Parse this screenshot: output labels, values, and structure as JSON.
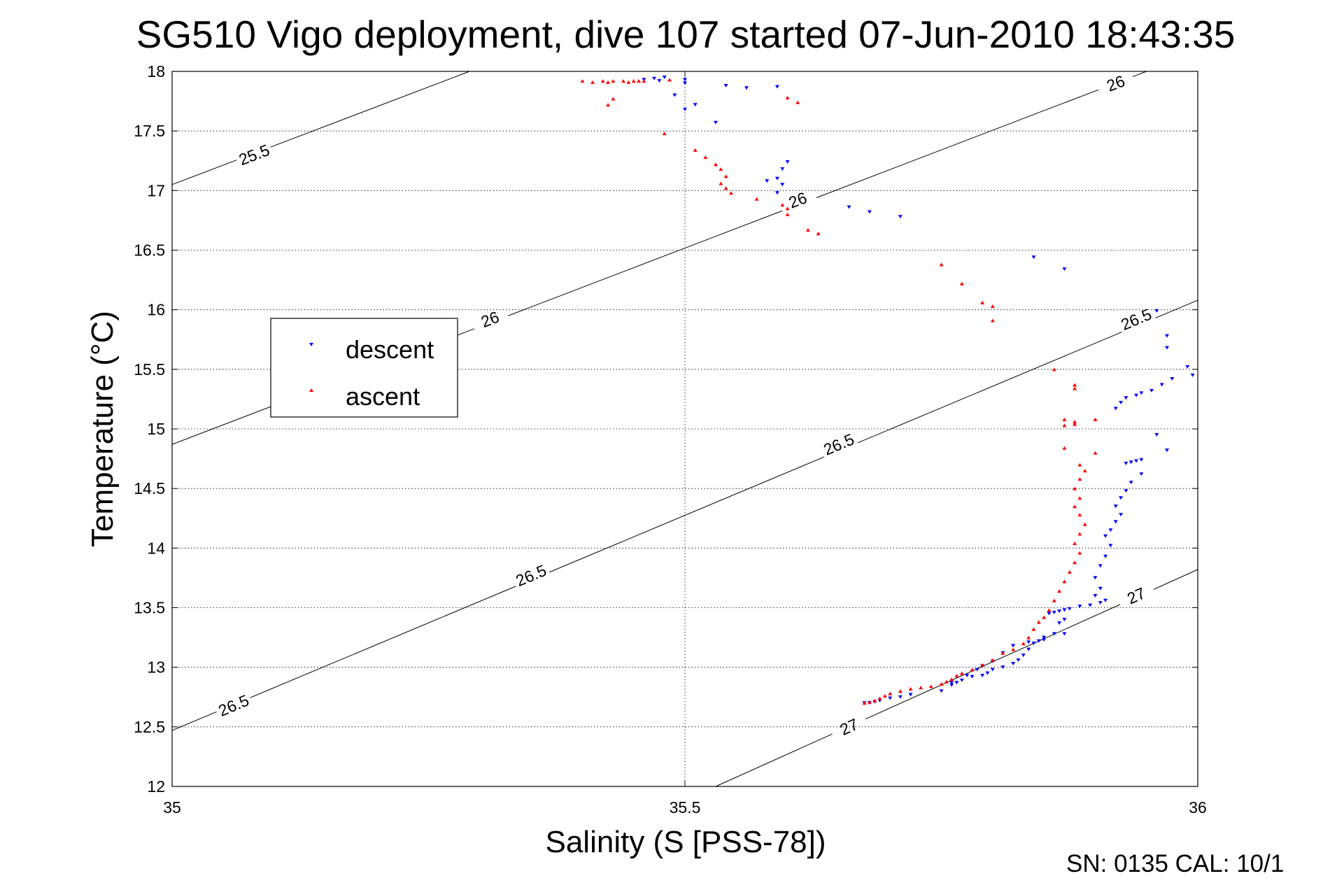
{
  "chart_data": {
    "type": "scatter",
    "title": "SG510 Vigo deployment, dive 107 started 07-Jun-2010 18:43:35",
    "xlabel": "Salinity (S [PSS-78])",
    "ylabel": "Temperature (°C)",
    "xlim": [
      35,
      36
    ],
    "ylim": [
      12,
      18
    ],
    "xticks": [
      "35",
      "35.5",
      "36"
    ],
    "yticks": [
      "12",
      "12.5",
      "13",
      "13.5",
      "14",
      "14.5",
      "15",
      "15.5",
      "16",
      "16.5",
      "17",
      "17.5",
      "18"
    ],
    "grid": true,
    "legend_position": "middle-left",
    "footer": "SN: 0135  CAL: 10/1",
    "density_contours": [
      {
        "label": "25.5",
        "line": [
          [
            35.0,
            17.05
          ],
          [
            35.29,
            18.0
          ]
        ],
        "label_at": [
          [
            35.08,
            17.3
          ]
        ]
      },
      {
        "label": "26",
        "line": [
          [
            35.0,
            14.87
          ],
          [
            35.95,
            18.0
          ]
        ],
        "label_at": [
          [
            35.31,
            15.92
          ],
          [
            35.61,
            16.92
          ],
          [
            35.92,
            17.9
          ]
        ]
      },
      {
        "label": "26.5",
        "line": [
          [
            35.0,
            12.47
          ],
          [
            36.0,
            16.08
          ]
        ],
        "label_at": [
          [
            35.06,
            12.68
          ],
          [
            35.35,
            13.77
          ],
          [
            35.65,
            14.87
          ],
          [
            35.94,
            15.92
          ]
        ]
      },
      {
        "label": "27",
        "line": [
          [
            35.53,
            12.0
          ],
          [
            36.0,
            13.82
          ]
        ],
        "label_at": [
          [
            35.66,
            12.5
          ],
          [
            35.94,
            13.6
          ]
        ]
      }
    ],
    "series": [
      {
        "name": "descent",
        "color": "#0000ff",
        "marker": "triangle-down",
        "points": [
          [
            35.46,
            17.93
          ],
          [
            35.47,
            17.94
          ],
          [
            35.475,
            17.92
          ],
          [
            35.48,
            17.95
          ],
          [
            35.5,
            17.93
          ],
          [
            35.5,
            17.9
          ],
          [
            35.54,
            17.88
          ],
          [
            35.56,
            17.86
          ],
          [
            35.59,
            17.87
          ],
          [
            35.49,
            17.8
          ],
          [
            35.51,
            17.72
          ],
          [
            35.5,
            17.68
          ],
          [
            35.53,
            17.57
          ],
          [
            35.6,
            17.24
          ],
          [
            35.595,
            17.18
          ],
          [
            35.59,
            17.1
          ],
          [
            35.58,
            17.08
          ],
          [
            35.595,
            17.05
          ],
          [
            35.59,
            16.98
          ],
          [
            35.66,
            16.86
          ],
          [
            35.68,
            16.82
          ],
          [
            35.71,
            16.78
          ],
          [
            35.84,
            16.44
          ],
          [
            35.87,
            16.34
          ],
          [
            35.96,
            15.99
          ],
          [
            35.97,
            15.78
          ],
          [
            35.97,
            15.68
          ],
          [
            35.99,
            15.52
          ],
          [
            35.995,
            15.45
          ],
          [
            35.975,
            15.42
          ],
          [
            35.965,
            15.37
          ],
          [
            35.955,
            15.32
          ],
          [
            35.945,
            15.3
          ],
          [
            35.94,
            15.28
          ],
          [
            35.93,
            15.26
          ],
          [
            35.925,
            15.22
          ],
          [
            35.92,
            15.17
          ],
          [
            35.96,
            14.95
          ],
          [
            35.97,
            14.82
          ],
          [
            35.945,
            14.74
          ],
          [
            35.94,
            14.73
          ],
          [
            35.935,
            14.72
          ],
          [
            35.93,
            14.71
          ],
          [
            35.945,
            14.62
          ],
          [
            35.935,
            14.55
          ],
          [
            35.93,
            14.48
          ],
          [
            35.925,
            14.42
          ],
          [
            35.92,
            14.35
          ],
          [
            35.925,
            14.28
          ],
          [
            35.92,
            14.22
          ],
          [
            35.915,
            14.15
          ],
          [
            35.91,
            14.1
          ],
          [
            35.915,
            14.02
          ],
          [
            35.91,
            13.93
          ],
          [
            35.905,
            13.85
          ],
          [
            35.9,
            13.75
          ],
          [
            35.905,
            13.66
          ],
          [
            35.9,
            13.6
          ],
          [
            35.91,
            13.56
          ],
          [
            35.905,
            13.54
          ],
          [
            35.895,
            13.52
          ],
          [
            35.885,
            13.51
          ],
          [
            35.875,
            13.49
          ],
          [
            35.87,
            13.48
          ],
          [
            35.865,
            13.47
          ],
          [
            35.86,
            13.46
          ],
          [
            35.855,
            13.45
          ],
          [
            35.87,
            13.4
          ],
          [
            35.865,
            13.37
          ],
          [
            35.87,
            13.28
          ],
          [
            35.86,
            13.28
          ],
          [
            35.85,
            13.25
          ],
          [
            35.845,
            13.22
          ],
          [
            35.84,
            13.2
          ],
          [
            35.835,
            13.15
          ],
          [
            35.83,
            13.1
          ],
          [
            35.825,
            13.06
          ],
          [
            35.82,
            13.03
          ],
          [
            35.81,
            13.0
          ],
          [
            35.8,
            12.98
          ],
          [
            35.795,
            12.95
          ],
          [
            35.79,
            12.93
          ],
          [
            35.78,
            12.92
          ],
          [
            35.77,
            12.89
          ],
          [
            35.765,
            12.87
          ],
          [
            35.76,
            12.85
          ],
          [
            35.85,
            13.23
          ],
          [
            35.835,
            13.21
          ],
          [
            35.82,
            13.18
          ],
          [
            35.81,
            13.12
          ],
          [
            35.8,
            13.05
          ],
          [
            35.79,
            13.01
          ],
          [
            35.785,
            12.98
          ],
          [
            35.775,
            12.93
          ],
          [
            35.76,
            12.87
          ],
          [
            35.75,
            12.8
          ],
          [
            35.72,
            12.77
          ],
          [
            35.71,
            12.75
          ],
          [
            35.7,
            12.74
          ],
          [
            35.69,
            12.72
          ],
          [
            35.685,
            12.71
          ],
          [
            35.68,
            12.7
          ],
          [
            35.675,
            12.7
          ]
        ]
      },
      {
        "name": "ascent",
        "color": "#ff0000",
        "marker": "triangle-up",
        "points": [
          [
            35.4,
            17.92
          ],
          [
            35.41,
            17.91
          ],
          [
            35.42,
            17.92
          ],
          [
            35.425,
            17.91
          ],
          [
            35.43,
            17.92
          ],
          [
            35.44,
            17.92
          ],
          [
            35.445,
            17.91
          ],
          [
            35.45,
            17.92
          ],
          [
            35.455,
            17.92
          ],
          [
            35.46,
            17.92
          ],
          [
            35.485,
            17.93
          ],
          [
            35.43,
            17.77
          ],
          [
            35.425,
            17.72
          ],
          [
            35.6,
            17.78
          ],
          [
            35.61,
            17.74
          ],
          [
            35.48,
            17.48
          ],
          [
            35.51,
            17.34
          ],
          [
            35.52,
            17.28
          ],
          [
            35.53,
            17.22
          ],
          [
            35.535,
            17.18
          ],
          [
            35.54,
            17.12
          ],
          [
            35.535,
            17.06
          ],
          [
            35.54,
            17.02
          ],
          [
            35.545,
            16.98
          ],
          [
            35.57,
            16.93
          ],
          [
            35.595,
            16.88
          ],
          [
            35.6,
            16.85
          ],
          [
            35.6,
            16.8
          ],
          [
            35.62,
            16.67
          ],
          [
            35.63,
            16.64
          ],
          [
            35.75,
            16.38
          ],
          [
            35.77,
            16.22
          ],
          [
            35.79,
            16.06
          ],
          [
            35.8,
            16.03
          ],
          [
            35.8,
            15.91
          ],
          [
            35.86,
            15.5
          ],
          [
            35.88,
            15.37
          ],
          [
            35.88,
            15.34
          ],
          [
            35.87,
            15.08
          ],
          [
            35.88,
            15.06
          ],
          [
            35.9,
            15.08
          ],
          [
            35.88,
            15.04
          ],
          [
            35.87,
            15.03
          ],
          [
            35.87,
            14.84
          ],
          [
            35.9,
            14.8
          ],
          [
            35.885,
            14.7
          ],
          [
            35.89,
            14.65
          ],
          [
            35.885,
            14.58
          ],
          [
            35.88,
            14.5
          ],
          [
            35.885,
            14.42
          ],
          [
            35.88,
            14.35
          ],
          [
            35.885,
            14.28
          ],
          [
            35.89,
            14.2
          ],
          [
            35.885,
            14.12
          ],
          [
            35.88,
            14.04
          ],
          [
            35.885,
            13.96
          ],
          [
            35.88,
            13.88
          ],
          [
            35.875,
            13.8
          ],
          [
            35.87,
            13.72
          ],
          [
            35.865,
            13.64
          ],
          [
            35.86,
            13.56
          ],
          [
            35.855,
            13.48
          ],
          [
            35.85,
            13.42
          ],
          [
            35.845,
            13.38
          ],
          [
            35.84,
            13.32
          ],
          [
            35.835,
            13.25
          ],
          [
            35.83,
            13.2
          ],
          [
            35.82,
            13.15
          ],
          [
            35.81,
            13.12
          ],
          [
            35.8,
            13.06
          ],
          [
            35.79,
            13.02
          ],
          [
            35.78,
            12.98
          ],
          [
            35.77,
            12.95
          ],
          [
            35.765,
            12.93
          ],
          [
            35.76,
            12.9
          ],
          [
            35.755,
            12.88
          ],
          [
            35.75,
            12.86
          ],
          [
            35.74,
            12.84
          ],
          [
            35.73,
            12.83
          ],
          [
            35.72,
            12.82
          ],
          [
            35.71,
            12.8
          ],
          [
            35.7,
            12.78
          ],
          [
            35.695,
            12.76
          ],
          [
            35.69,
            12.74
          ],
          [
            35.685,
            12.72
          ],
          [
            35.68,
            12.71
          ],
          [
            35.675,
            12.7
          ]
        ]
      }
    ]
  }
}
